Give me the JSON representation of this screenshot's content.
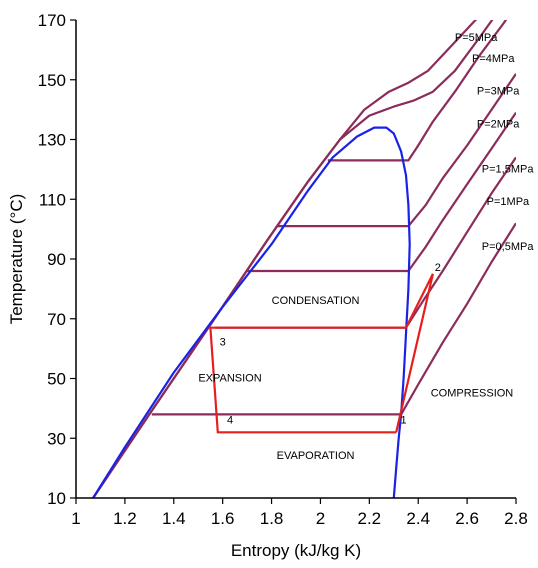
{
  "chart_data": {
    "type": "line",
    "xlabel": "Entropy (kJ/kg K)",
    "ylabel": "Temperature (°C)",
    "xlim": [
      1,
      2.8
    ],
    "ylim": [
      10,
      170
    ],
    "xticks": [
      "1",
      "1.2",
      "1.4",
      "1.6",
      "1.8",
      "2",
      "2.2",
      "2.4",
      "2.6",
      "2.8"
    ],
    "yticks": [
      "10",
      "30",
      "50",
      "70",
      "90",
      "110",
      "130",
      "150",
      "170"
    ],
    "grid": false,
    "colors": {
      "isobar": "#8b2c5b",
      "saturation_dome": "#1a22e6",
      "cycle": "#e61e1e"
    },
    "saturation_dome": {
      "x": [
        1.07,
        1.2,
        1.4,
        1.6,
        1.8,
        1.95,
        2.05,
        2.15,
        2.22,
        2.27,
        2.3,
        2.33,
        2.35,
        2.36,
        2.365,
        2.36,
        2.35,
        2.34,
        2.33,
        2.32,
        2.31,
        2.3
      ],
      "y": [
        10,
        27,
        52,
        74,
        95,
        113,
        124,
        131,
        134,
        134,
        132,
        126,
        118,
        108,
        95,
        80,
        65,
        50,
        38,
        30,
        20,
        10
      ]
    },
    "isobars": [
      {
        "name": "P=0,5MPa",
        "x": [
          1.31,
          2.33,
          2.4,
          2.5,
          2.6,
          2.7,
          2.8
        ],
        "y": [
          38,
          38,
          48,
          62,
          75,
          89,
          102
        ]
      },
      {
        "name": "P=1MPa",
        "x": [
          1.57,
          2.35,
          2.42,
          2.5,
          2.6,
          2.7,
          2.8
        ],
        "y": [
          67,
          67,
          76,
          86,
          99,
          112,
          124
        ]
      },
      {
        "name": "P=1,5MPa",
        "x": [
          1.7,
          2.36,
          2.43,
          2.5,
          2.6,
          2.7,
          2.8
        ],
        "y": [
          86,
          86,
          94,
          103,
          115,
          127,
          139
        ]
      },
      {
        "name": "P=2MPa",
        "x": [
          1.82,
          2.36,
          2.43,
          2.5,
          2.6,
          2.7,
          2.8
        ],
        "y": [
          101,
          101,
          108,
          117,
          128,
          140,
          152
        ]
      },
      {
        "name": "P=3MPa",
        "x": [
          2.03,
          2.36,
          2.4,
          2.46,
          2.55,
          2.65,
          2.75,
          2.8
        ],
        "y": [
          123,
          123,
          128,
          136,
          146,
          158,
          169,
          175
        ]
      },
      {
        "name": "P=4MPa",
        "x": [
          1.07,
          1.3,
          1.55,
          1.78,
          1.95,
          2.08,
          2.2,
          2.3,
          2.38,
          2.46,
          2.55,
          2.65,
          2.72
        ],
        "y": [
          10,
          38,
          68,
          96,
          116,
          130,
          138,
          141,
          143,
          146,
          153,
          164,
          172
        ]
      },
      {
        "name": "P=5MPa",
        "x": [
          1.07,
          1.3,
          1.55,
          1.78,
          1.95,
          2.08,
          2.18,
          2.28,
          2.36,
          2.44,
          2.52,
          2.6,
          2.68
        ],
        "y": [
          10,
          38,
          68,
          96,
          116,
          130,
          140,
          146,
          149,
          153,
          160,
          167,
          174
        ]
      }
    ],
    "cycle": {
      "x": [
        2.31,
        2.46,
        2.35,
        1.55,
        1.58,
        2.31
      ],
      "y": [
        32,
        85,
        67,
        67,
        32,
        32
      ]
    },
    "point_labels": [
      {
        "label": "1",
        "x": 2.34,
        "y": 35
      },
      {
        "label": "2",
        "x": 2.48,
        "y": 86
      },
      {
        "label": "3",
        "x": 1.6,
        "y": 61
      },
      {
        "label": "4",
        "x": 1.63,
        "y": 35
      }
    ],
    "region_labels": [
      {
        "label": "CONDENSATION",
        "x": 1.98,
        "y": 75
      },
      {
        "label": "EXPANSION",
        "x": 1.63,
        "y": 49
      },
      {
        "label": "COMPRESSION",
        "x": 2.62,
        "y": 44
      },
      {
        "label": "EVAPORATION",
        "x": 1.98,
        "y": 23
      }
    ],
    "isobar_labels": [
      {
        "label": "P=5MPa",
        "x": 2.55,
        "y": 163
      },
      {
        "label": "P=4MPa",
        "x": 2.62,
        "y": 156
      },
      {
        "label": "P=3MPa",
        "x": 2.64,
        "y": 145
      },
      {
        "label": "P=2MPa",
        "x": 2.64,
        "y": 134
      },
      {
        "label": "P=1,5MPa",
        "x": 2.66,
        "y": 119
      },
      {
        "label": "P=1MPa",
        "x": 2.68,
        "y": 108
      },
      {
        "label": "P=0,5MPa",
        "x": 2.66,
        "y": 93
      }
    ]
  }
}
